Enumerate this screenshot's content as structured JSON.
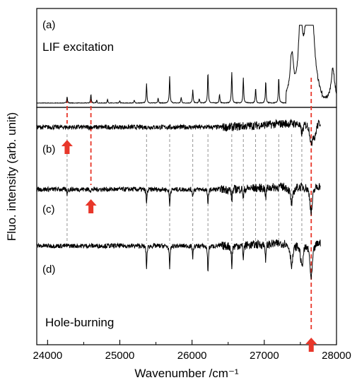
{
  "chart_data": {
    "type": "line",
    "xlabel": "Wavenumber /cm⁻¹",
    "ylabel": "Fluo. intensity (arb. unit)",
    "xlim": [
      23850,
      28000
    ],
    "xticks": [
      24000,
      25000,
      26000,
      27000,
      28000
    ],
    "grid": false,
    "panels": [
      {
        "label": "(a)",
        "title": "LIF excitation"
      },
      {
        "label": "(b)"
      },
      {
        "label": "(c)"
      },
      {
        "label": "(d)"
      }
    ],
    "bottom_annotation": "Hole-burning",
    "series": [
      {
        "panel": "(a)",
        "peaks": [
          {
            "x": 24270,
            "y": 0.09
          },
          {
            "x": 24600,
            "y": 0.12
          },
          {
            "x": 24680,
            "y": 0.04
          },
          {
            "x": 24830,
            "y": 0.05
          },
          {
            "x": 25000,
            "y": 0.03
          },
          {
            "x": 25200,
            "y": 0.04
          },
          {
            "x": 25370,
            "y": 0.26
          },
          {
            "x": 25530,
            "y": 0.07
          },
          {
            "x": 25690,
            "y": 0.36
          },
          {
            "x": 25850,
            "y": 0.08
          },
          {
            "x": 26010,
            "y": 0.18
          },
          {
            "x": 26100,
            "y": 0.06
          },
          {
            "x": 26220,
            "y": 0.42
          },
          {
            "x": 26380,
            "y": 0.12
          },
          {
            "x": 26550,
            "y": 0.42
          },
          {
            "x": 26710,
            "y": 0.34
          },
          {
            "x": 26880,
            "y": 0.2
          },
          {
            "x": 27020,
            "y": 0.3
          },
          {
            "x": 27200,
            "y": 0.35
          },
          {
            "x": 27380,
            "y": 0.6
          },
          {
            "x": 27500,
            "y": 0.95
          },
          {
            "x": 27600,
            "y": 0.8
          },
          {
            "x": 27660,
            "y": 0.75
          },
          {
            "x": 27950,
            "y": 0.45
          }
        ]
      },
      {
        "panel": "(b)",
        "dips": [
          {
            "x": 27520,
            "y": -0.25
          },
          {
            "x": 27650,
            "y": -0.55
          },
          {
            "x": 27700,
            "y": -0.35
          }
        ]
      },
      {
        "panel": "(c)",
        "dips": [
          {
            "x": 24270,
            "y": -0.12
          },
          {
            "x": 24600,
            "y": -0.05
          },
          {
            "x": 25370,
            "y": -0.4
          },
          {
            "x": 25690,
            "y": -0.45
          },
          {
            "x": 26010,
            "y": -0.2
          },
          {
            "x": 26220,
            "y": -0.45
          },
          {
            "x": 26550,
            "y": -0.35
          },
          {
            "x": 26710,
            "y": -0.3
          },
          {
            "x": 27020,
            "y": -0.3
          },
          {
            "x": 27380,
            "y": -0.45
          },
          {
            "x": 27650,
            "y": -0.7
          }
        ]
      },
      {
        "panel": "(d)",
        "dips": [
          {
            "x": 25370,
            "y": -0.6
          },
          {
            "x": 25690,
            "y": -0.65
          },
          {
            "x": 26010,
            "y": -0.3
          },
          {
            "x": 26220,
            "y": -0.7
          },
          {
            "x": 26550,
            "y": -0.6
          },
          {
            "x": 26710,
            "y": -0.35
          },
          {
            "x": 27020,
            "y": -0.45
          },
          {
            "x": 27380,
            "y": -0.55
          },
          {
            "x": 27520,
            "y": -0.6
          },
          {
            "x": 27650,
            "y": -0.95
          }
        ]
      }
    ],
    "annotations": {
      "red_guides": [
        {
          "x": 24270,
          "panels": [
            "(a)",
            "(b)"
          ],
          "arrow_panel": "(b)"
        },
        {
          "x": 24600,
          "panels": [
            "(a)",
            "(b)"
          ],
          "arrow_panel": "(c)"
        },
        {
          "x": 27650,
          "panels": [
            "(a)",
            "(b)",
            "(c)",
            "(d)"
          ],
          "arrow_panel": "bottom"
        }
      ],
      "gray_guides": [
        24270,
        25370,
        25690,
        26010,
        26220,
        26550,
        26710,
        26880,
        27020,
        27200,
        27380,
        27520
      ],
      "colors": {
        "trace": "#000000",
        "guide_red": "#e8372a",
        "guide_gray": "#888888"
      }
    }
  }
}
